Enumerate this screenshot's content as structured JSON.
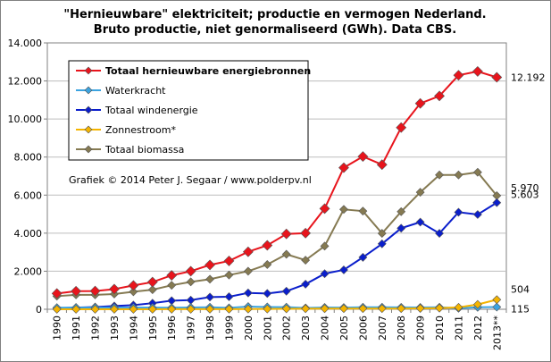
{
  "chart_data": {
    "type": "line",
    "title": "\"Hernieuwbare\"  elektriciteit; productie  en vermogen Nederland.",
    "subtitle": "Bruto productie,  niet genormaliseerd  (GWh). Data CBS.",
    "credit": "Grafiek © 2014 Peter J. Segaar / www.polderpv.nl",
    "categories": [
      "1990",
      "1991",
      "1992",
      "1993",
      "1994",
      "1995",
      "1996",
      "1997",
      "1998",
      "1999",
      "2000",
      "2001",
      "2002",
      "2003",
      "2004",
      "2005",
      "2006",
      "2007",
      "2008",
      "2009",
      "2010",
      "2011",
      "2012",
      "2013**"
    ],
    "ylim": [
      0,
      14000
    ],
    "yticks": [
      0,
      2000,
      4000,
      6000,
      8000,
      10000,
      12000,
      14000
    ],
    "ytick_labels": [
      "0",
      "2.000",
      "4.000",
      "6.000",
      "8.000",
      "10.000",
      "12.000",
      "14.000"
    ],
    "grid": true,
    "legend_position": "top-left",
    "series": [
      {
        "name": "Totaal hernieuwbare energiebronnen",
        "color": "#e8141c",
        "marker": "diamond",
        "bold": true,
        "values": [
          830,
          950,
          960,
          1060,
          1250,
          1430,
          1780,
          2000,
          2330,
          2540,
          3020,
          3360,
          3960,
          4000,
          5290,
          7440,
          8030,
          7600,
          9550,
          10820,
          11210,
          12300,
          12500,
          12192
        ],
        "end_label": "12.192"
      },
      {
        "name": "Waterkracht",
        "color": "#3ba3e0",
        "marker": "diamond",
        "bold": false,
        "values": [
          85,
          90,
          90,
          90,
          90,
          90,
          80,
          95,
          105,
          75,
          140,
          120,
          110,
          70,
          95,
          90,
          105,
          105,
          100,
          95,
          105,
          55,
          105,
          115
        ],
        "end_label": "115"
      },
      {
        "name": "Totaal windenergie",
        "color": "#0a1ecc",
        "marker": "diamond",
        "bold": false,
        "values": [
          60,
          90,
          120,
          170,
          220,
          320,
          450,
          480,
          640,
          660,
          860,
          830,
          950,
          1320,
          1870,
          2070,
          2730,
          3440,
          4260,
          4580,
          3990,
          5100,
          4980,
          5603
        ],
        "end_label": "5.603"
      },
      {
        "name": "Zonnestroom*",
        "color": "#f4b400",
        "marker": "diamond",
        "bold": false,
        "values": [
          0,
          0,
          0,
          0,
          1,
          2,
          3,
          3,
          6,
          8,
          12,
          16,
          25,
          30,
          33,
          35,
          35,
          36,
          38,
          46,
          60,
          100,
          254,
          504
        ],
        "end_label": "504"
      },
      {
        "name": "Totaal biomassa",
        "color": "#857a52",
        "marker": "diamond",
        "bold": false,
        "values": [
          690,
          760,
          760,
          800,
          920,
          1030,
          1260,
          1440,
          1580,
          1800,
          2000,
          2350,
          2890,
          2580,
          3320,
          5250,
          5160,
          3990,
          5130,
          6150,
          7060,
          7060,
          7200,
          5970
        ],
        "end_label": "5.970"
      }
    ]
  }
}
